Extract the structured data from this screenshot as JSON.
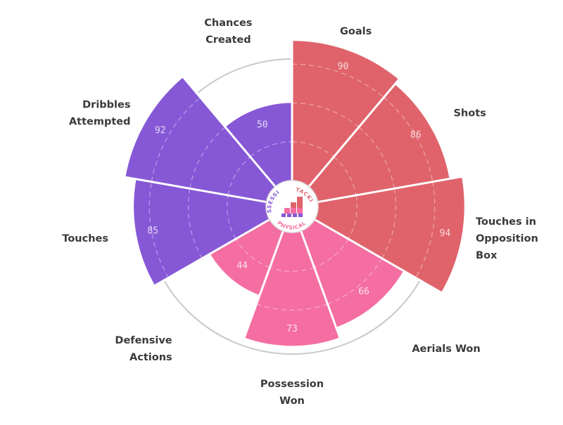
{
  "chart_data": {
    "type": "polar-bar",
    "title": "",
    "scale": [
      0,
      100
    ],
    "grid_rings": [
      25,
      50,
      75
    ],
    "categories": [
      {
        "name": "Goals",
        "value": 90,
        "group": "attacking"
      },
      {
        "name": "Shots",
        "value": 86,
        "group": "attacking"
      },
      {
        "name": "Touches in Opposition Box",
        "value": 94,
        "group": "attacking",
        "lines": [
          "Touches in",
          "Opposition",
          "Box"
        ]
      },
      {
        "name": "Aerials Won",
        "value": 66,
        "group": "physical",
        "lines": [
          "Aerials Won"
        ]
      },
      {
        "name": "Possession Won",
        "value": 73,
        "group": "physical",
        "lines": [
          "Possession",
          "Won"
        ]
      },
      {
        "name": "Defensive Actions",
        "value": 44,
        "group": "physical",
        "lines": [
          "Defensive",
          "Actions"
        ]
      },
      {
        "name": "Touches",
        "value": 85,
        "group": "possession",
        "lines": [
          "Touches"
        ]
      },
      {
        "name": "Dribbles Attempted",
        "value": 92,
        "group": "possession",
        "lines": [
          "Dribbles",
          "Attempted"
        ]
      },
      {
        "name": "Chances Created",
        "value": 50,
        "group": "possession",
        "lines": [
          "Chances",
          "Created"
        ]
      }
    ],
    "groups": [
      {
        "id": "attacking",
        "label": "ATTACKING",
        "color": "#e0636b"
      },
      {
        "id": "physical",
        "label": "PHYSICAL",
        "color": "#f46ea2"
      },
      {
        "id": "possession",
        "label": "POSSESSION",
        "color": "#8658d6"
      }
    ],
    "colors": {
      "attacking": "#e0636b",
      "physical": "#f46ea2",
      "possession": "#8658d6",
      "outer_ring": "#c8c8c8",
      "grid": "#ffffff"
    }
  }
}
